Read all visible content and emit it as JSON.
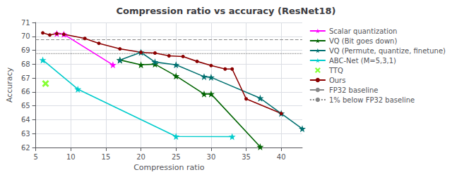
{
  "chart_data": {
    "type": "line",
    "title": "Compression ratio vs accuracy (ResNet18)",
    "x_label": "Compression ratio",
    "y_label": "Accuracy",
    "xlim": [
      5,
      43
    ],
    "xticks": [
      5,
      10,
      15,
      20,
      25,
      30,
      35,
      40
    ],
    "ylim": [
      62,
      71
    ],
    "yticks": [
      62,
      63,
      64,
      65,
      66,
      67,
      68,
      69,
      70,
      71
    ],
    "grid": true,
    "legend": "right",
    "series": [
      {
        "name": "Scalar quantization",
        "type": "line",
        "color": "#ff00ff",
        "marker": "star",
        "line_style": "solid",
        "x": [
          8,
          9,
          16
        ],
        "values": [
          70.2,
          70.15,
          67.95
        ]
      },
      {
        "name": "VQ (Bit goes down)",
        "type": "line",
        "color": "#006400",
        "marker": "star",
        "line_style": "solid",
        "x": [
          17,
          20,
          22,
          25,
          29,
          30,
          37
        ],
        "values": [
          68.3,
          67.95,
          68.0,
          67.15,
          65.85,
          65.85,
          62.05
        ]
      },
      {
        "name": "VQ (Permute, quantize, finetune)",
        "type": "line",
        "color": "#007070",
        "marker": "star",
        "line_style": "solid",
        "x": [
          17,
          20,
          22,
          25,
          29,
          30,
          37,
          40,
          43
        ],
        "values": [
          68.3,
          68.85,
          68.15,
          67.95,
          67.1,
          67.05,
          65.55,
          64.45,
          63.35
        ]
      },
      {
        "name": "ABC-Net (M=5,3,1)",
        "type": "line",
        "color": "#00cccc",
        "marker": "star",
        "line_style": "solid",
        "x": [
          6,
          11,
          25,
          33
        ],
        "values": [
          68.3,
          66.2,
          62.8,
          62.78
        ]
      },
      {
        "name": "TTQ",
        "type": "scatter",
        "color": "#66ff00",
        "marker": "x",
        "x": [
          6.4
        ],
        "values": [
          66.6
        ]
      },
      {
        "name": "Ours",
        "type": "line",
        "color": "#8b0000",
        "marker": "circle",
        "line_style": "solid",
        "x": [
          6,
          7,
          8,
          9,
          12,
          14,
          17,
          20,
          22,
          24,
          26,
          28,
          30,
          32,
          33,
          35,
          40
        ],
        "values": [
          70.25,
          70.1,
          70.2,
          70.15,
          69.85,
          69.5,
          69.1,
          68.85,
          68.8,
          68.6,
          68.55,
          68.2,
          67.9,
          67.65,
          67.65,
          65.5,
          64.45
        ]
      },
      {
        "name": "FP32 baseline",
        "type": "hline",
        "color": "#888888",
        "line_style": "dashed",
        "values": [
          69.76
        ]
      },
      {
        "name": "1% below FP32 baseline",
        "type": "hline",
        "color": "#888888",
        "line_style": "dotted",
        "values": [
          68.76
        ]
      }
    ]
  }
}
